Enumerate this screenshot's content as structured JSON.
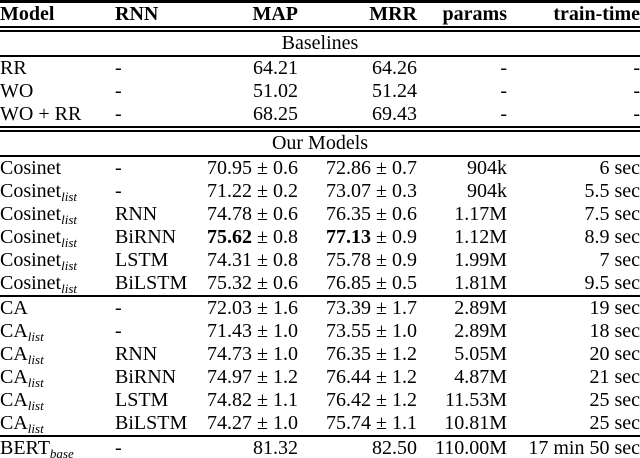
{
  "colors": {
    "text": "#000000",
    "background": "#ffffff",
    "rule": "#000000"
  },
  "pm_symbol": "±",
  "table": {
    "columns": [
      {
        "id": "model",
        "label": "Model",
        "align": "left"
      },
      {
        "id": "rnn",
        "label": "RNN",
        "align": "left"
      },
      {
        "id": "map",
        "label": "MAP",
        "align": "right"
      },
      {
        "id": "mrr",
        "label": "MRR",
        "align": "right"
      },
      {
        "id": "params",
        "label": "params",
        "align": "right"
      },
      {
        "id": "train_time",
        "label": "train-time",
        "align": "right"
      }
    ],
    "sections": [
      {
        "title": "Baselines",
        "groups": [
          [
            {
              "model": "RR",
              "sub": "",
              "rnn": "-",
              "map": {
                "val": "64.21",
                "pm": "",
                "bold": false
              },
              "mrr": {
                "val": "64.26",
                "pm": "",
                "bold": false
              },
              "params": "-",
              "time": "-"
            },
            {
              "model": "WO",
              "sub": "",
              "rnn": "-",
              "map": {
                "val": "51.02",
                "pm": "",
                "bold": false
              },
              "mrr": {
                "val": "51.24",
                "pm": "",
                "bold": false
              },
              "params": "-",
              "time": "-"
            },
            {
              "model": "WO + RR",
              "sub": "",
              "rnn": "-",
              "map": {
                "val": "68.25",
                "pm": "",
                "bold": false
              },
              "mrr": {
                "val": "69.43",
                "pm": "",
                "bold": false
              },
              "params": "-",
              "time": "-"
            }
          ]
        ]
      },
      {
        "title": "Our Models",
        "groups": [
          [
            {
              "model": "Cosinet",
              "sub": "",
              "rnn": "-",
              "map": {
                "val": "70.95",
                "pm": "0.6",
                "bold": false
              },
              "mrr": {
                "val": "72.86",
                "pm": "0.7",
                "bold": false
              },
              "params": "904k",
              "time": "6 sec"
            },
            {
              "model": "Cosinet",
              "sub": "list",
              "rnn": "-",
              "map": {
                "val": "71.22",
                "pm": "0.2",
                "bold": false
              },
              "mrr": {
                "val": "73.07",
                "pm": "0.3",
                "bold": false
              },
              "params": "904k",
              "time": "5.5 sec"
            },
            {
              "model": "Cosinet",
              "sub": "list",
              "rnn": "RNN",
              "map": {
                "val": "74.78",
                "pm": "0.6",
                "bold": false
              },
              "mrr": {
                "val": "76.35",
                "pm": "0.6",
                "bold": false
              },
              "params": "1.17M",
              "time": "7.5 sec"
            },
            {
              "model": "Cosinet",
              "sub": "list",
              "rnn": "BiRNN",
              "map": {
                "val": "75.62",
                "pm": "0.8",
                "bold": true
              },
              "mrr": {
                "val": "77.13",
                "pm": "0.9",
                "bold": true
              },
              "params": "1.12M",
              "time": "8.9 sec"
            },
            {
              "model": "Cosinet",
              "sub": "list",
              "rnn": "LSTM",
              "map": {
                "val": "74.31",
                "pm": "0.8",
                "bold": false
              },
              "mrr": {
                "val": "75.78",
                "pm": "0.9",
                "bold": false
              },
              "params": "1.99M",
              "time": "7 sec"
            },
            {
              "model": "Cosinet",
              "sub": "list",
              "rnn": "BiLSTM",
              "map": {
                "val": "75.32",
                "pm": "0.6",
                "bold": false
              },
              "mrr": {
                "val": "76.85",
                "pm": "0.5",
                "bold": false
              },
              "params": "1.81M",
              "time": "9.5 sec"
            }
          ],
          [
            {
              "model": "CA",
              "sub": "",
              "rnn": "-",
              "map": {
                "val": "72.03",
                "pm": "1.6",
                "bold": false
              },
              "mrr": {
                "val": "73.39",
                "pm": "1.7",
                "bold": false
              },
              "params": "2.89M",
              "time": "19 sec"
            },
            {
              "model": "CA",
              "sub": "list",
              "rnn": "-",
              "map": {
                "val": "71.43",
                "pm": "1.0",
                "bold": false
              },
              "mrr": {
                "val": "73.55",
                "pm": "1.0",
                "bold": false
              },
              "params": "2.89M",
              "time": "18 sec"
            },
            {
              "model": "CA",
              "sub": "list",
              "rnn": "RNN",
              "map": {
                "val": "74.73",
                "pm": "1.0",
                "bold": false
              },
              "mrr": {
                "val": "76.35",
                "pm": "1.2",
                "bold": false
              },
              "params": "5.05M",
              "time": "20 sec"
            },
            {
              "model": "CA",
              "sub": "list",
              "rnn": "BiRNN",
              "map": {
                "val": "74.97",
                "pm": "1.2",
                "bold": false
              },
              "mrr": {
                "val": "76.44",
                "pm": "1.2",
                "bold": false
              },
              "params": "4.87M",
              "time": "21 sec"
            },
            {
              "model": "CA",
              "sub": "list",
              "rnn": "LSTM",
              "map": {
                "val": "74.82",
                "pm": "1.1",
                "bold": false
              },
              "mrr": {
                "val": "76.42",
                "pm": "1.2",
                "bold": false
              },
              "params": "11.53M",
              "time": "25 sec"
            },
            {
              "model": "CA",
              "sub": "list",
              "rnn": "BiLSTM",
              "map": {
                "val": "74.27",
                "pm": "1.0",
                "bold": false
              },
              "mrr": {
                "val": "75.74",
                "pm": "1.1",
                "bold": false
              },
              "params": "10.81M",
              "time": "25 sec"
            }
          ],
          [
            {
              "model": "BERT",
              "sub": "base",
              "rnn": "-",
              "map": {
                "val": "81.32",
                "pm": "",
                "bold": false
              },
              "mrr": {
                "val": "82.50",
                "pm": "",
                "bold": false
              },
              "params": "110.00M",
              "time": "17 min 50 sec"
            }
          ]
        ]
      }
    ]
  }
}
